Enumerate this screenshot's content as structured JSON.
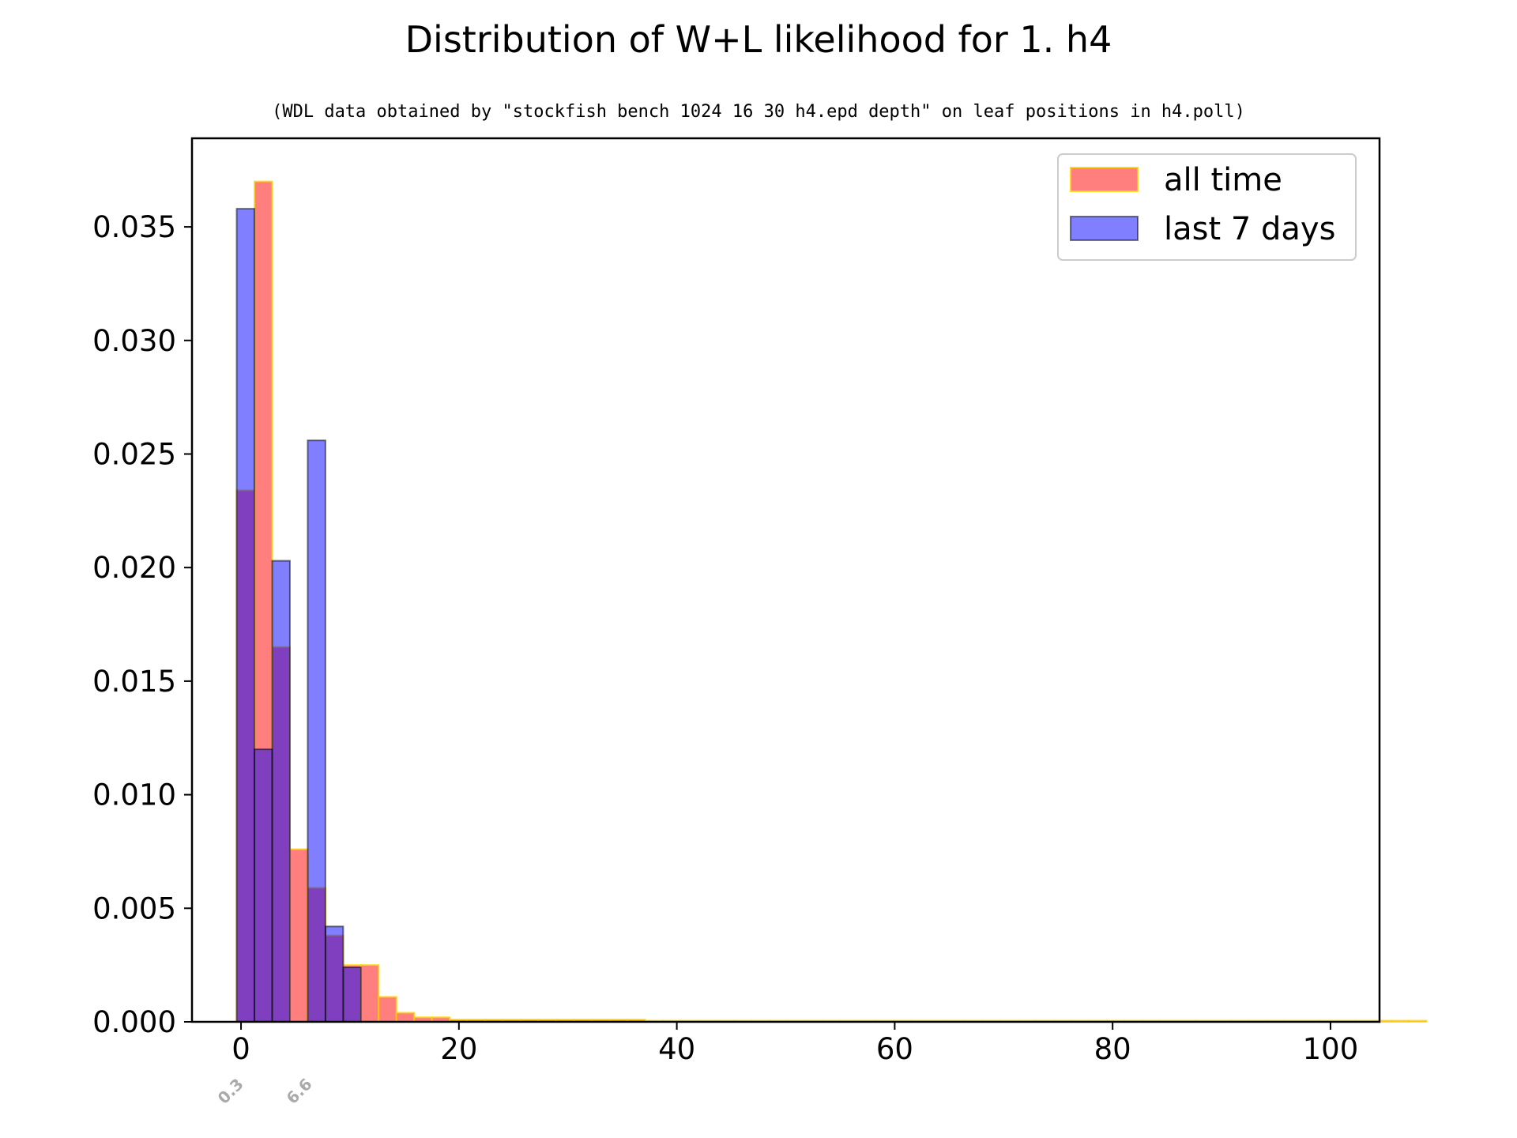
{
  "chart_data": {
    "type": "bar",
    "title": "Distribution of W+L likelihood for 1. h4",
    "subtitle": "(WDL data obtained by \"stockfish bench 1024 16 30 h4.epd depth\" on leaf positions in h4.poll)",
    "xlabel": "",
    "ylabel": "",
    "xlim": [
      -4.5,
      104.5
    ],
    "ylim": [
      0,
      0.0389
    ],
    "x_ticks": [
      0,
      20,
      40,
      60,
      80,
      100
    ],
    "y_ticks": [
      0.0,
      0.005,
      0.01,
      0.015,
      0.02,
      0.025,
      0.03,
      0.035
    ],
    "y_tick_labels": [
      "0.000",
      "0.005",
      "0.010",
      "0.015",
      "0.020",
      "0.025",
      "0.030",
      "0.035"
    ],
    "bin_width": 1.63,
    "bin_start": -0.4,
    "series": [
      {
        "name": "all time",
        "fill": "#ff0000",
        "edge": "#ffd700",
        "alpha": 0.5,
        "values": [
          0.0234,
          0.037,
          0.0165,
          0.0076,
          0.0059,
          0.0038,
          0.0025,
          0.0025,
          0.0011,
          0.0004,
          0.0002,
          0.0002,
          0.0001,
          0.0001,
          0.0001,
          0.0001,
          0.0001,
          0.0001,
          0.0001,
          0.0001,
          0.0001,
          0.0001,
          0.0001,
          5e-05,
          5e-05,
          5e-05,
          5e-05,
          5e-05,
          5e-05,
          5e-05,
          5e-05,
          5e-05,
          5e-05,
          5e-05,
          5e-05,
          5e-05,
          5e-05,
          5e-05,
          5e-05,
          5e-05,
          5e-05,
          5e-05,
          5e-05,
          5e-05,
          5e-05,
          5e-05,
          5e-05,
          5e-05,
          5e-05,
          5e-05,
          5e-05,
          5e-05,
          5e-05,
          5e-05,
          5e-05,
          5e-05,
          5e-05,
          5e-05,
          5e-05,
          5e-05,
          5e-05,
          5e-05,
          5e-05,
          5e-05,
          5e-05,
          5e-05,
          5e-05
        ]
      },
      {
        "name": "last 7 days",
        "fill": "#0000ff",
        "edge": "#000000",
        "alpha": 0.5,
        "values": [
          0.0358,
          0.012,
          0.0203,
          0.0,
          0.0256,
          0.0042,
          0.0024
        ]
      }
    ],
    "annotations": [
      {
        "label": "0.3",
        "x": 0.3,
        "color": "#aaaaaa"
      },
      {
        "label": "6.6",
        "x": 6.6,
        "color": "#aaaaaa"
      }
    ],
    "legend": {
      "position": "top-right",
      "entries": [
        "all time",
        "last 7 days"
      ]
    }
  }
}
